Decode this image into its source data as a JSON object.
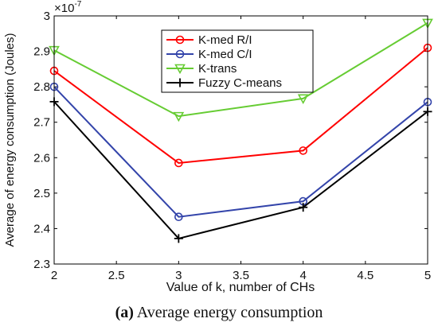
{
  "chart_data": {
    "type": "line",
    "x": [
      2,
      3,
      4,
      5
    ],
    "xlim": [
      2,
      5
    ],
    "ylim": [
      2.3,
      3.0
    ],
    "xticks": [
      "2",
      "2.5",
      "3",
      "3.5",
      "4",
      "4.5",
      "5"
    ],
    "yticks": [
      "2.3",
      "2.4",
      "2.5",
      "2.6",
      "2.7",
      "2.8",
      "2.9",
      "3"
    ],
    "y_multiplier": "×10",
    "y_exponent": "-7",
    "xlabel": "Value of k, number of CHs",
    "ylabel": "Average of energy consumption (Joules)",
    "grid": false,
    "legend_position": "top-right",
    "series": [
      {
        "name": "K-med R/I",
        "values": [
          2.845,
          2.585,
          2.62,
          2.91
        ],
        "color": "#ff0000",
        "marker": "circle"
      },
      {
        "name": "K-med C/I",
        "values": [
          2.8,
          2.433,
          2.477,
          2.757
        ],
        "color": "#3344aa",
        "marker": "circle"
      },
      {
        "name": "K-trans",
        "values": [
          2.903,
          2.717,
          2.767,
          2.98
        ],
        "color": "#66cc33",
        "marker": "triangle-down"
      },
      {
        "name": "Fuzzy C-means",
        "values": [
          2.758,
          2.372,
          2.46,
          2.73
        ],
        "color": "#000000",
        "marker": "plus"
      }
    ]
  },
  "caption": {
    "label": "(a)",
    "text": "Average energy consumption"
  }
}
